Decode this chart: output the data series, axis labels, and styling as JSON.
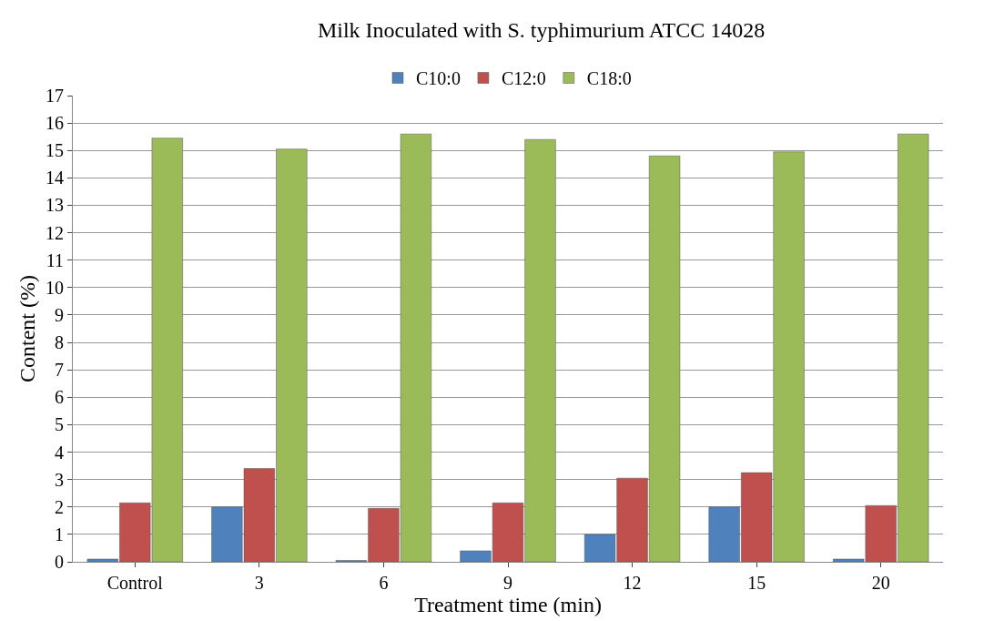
{
  "chart_data": {
    "type": "bar",
    "title": "Milk Inoculated with S. typhimurium ATCC 14028",
    "xlabel": "Treatment time (min)",
    "ylabel": "Content (%)",
    "categories": [
      "Control",
      "3",
      "6",
      "9",
      "12",
      "15",
      "20"
    ],
    "series": [
      {
        "name": "C10:0",
        "color": "#4f81bd",
        "values": [
          0.1,
          2.0,
          0.05,
          0.4,
          1.0,
          2.0,
          0.1
        ]
      },
      {
        "name": "C12:0",
        "color": "#c0504d",
        "values": [
          2.15,
          3.4,
          1.95,
          2.15,
          3.05,
          3.25,
          2.05
        ]
      },
      {
        "name": "C18:0",
        "color": "#9bbb59",
        "values": [
          15.45,
          15.05,
          15.6,
          15.4,
          14.8,
          14.95,
          15.6
        ]
      }
    ],
    "ylim": [
      0,
      17
    ],
    "yticks": [
      0,
      1,
      2,
      3,
      4,
      5,
      6,
      7,
      8,
      9,
      10,
      11,
      12,
      13,
      14,
      15,
      16,
      17
    ],
    "grid": "y",
    "legend": "top"
  }
}
